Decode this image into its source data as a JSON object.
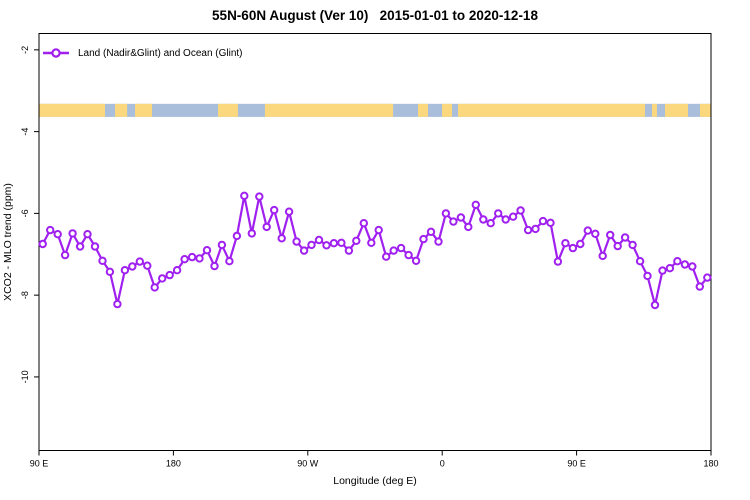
{
  "title": "55N-60N August (Ver 10)   2015-01-01 to 2020-12-18",
  "legend": {
    "label": "Land (Nadir&Glint) and Ocean (Glint)",
    "marker_color": "#A020F0"
  },
  "chart_data": {
    "type": "line",
    "title": "55N-60N August (Ver 10)   2015-01-01 to 2020-12-18",
    "xlabel": "Longitude (deg E)",
    "ylabel": "XCO2 - MLO trend (ppm)",
    "xlim": [
      90,
      540
    ],
    "ylim": [
      -11.8,
      -1.6
    ],
    "grid": false,
    "legend_position": "top-left",
    "x_ticks": [
      {
        "pos": 90,
        "label": "90 E"
      },
      {
        "pos": 180,
        "label": "180"
      },
      {
        "pos": 270,
        "label": "90 W"
      },
      {
        "pos": 360,
        "label": "0"
      },
      {
        "pos": 450,
        "label": "90 E"
      },
      {
        "pos": 540,
        "label": "180"
      }
    ],
    "y_ticks": [
      {
        "pos": -2,
        "label": "-2"
      },
      {
        "pos": -4,
        "label": "-4"
      },
      {
        "pos": -6,
        "label": "-6"
      },
      {
        "pos": -8,
        "label": "-8"
      },
      {
        "pos": -10,
        "label": "-10"
      }
    ],
    "map_strip": {
      "description": "world coastline strip at 55N-60N, ocean vs land",
      "ocean_color": "#A9BEDB",
      "land_color": "#FBD77E",
      "value_top": -3.32,
      "value_bottom": -3.64,
      "land_segments_lon": [
        [
          90,
          134.2
        ],
        [
          140.9,
          149.0
        ],
        [
          154.3,
          165.7
        ],
        [
          209.9,
          223.2
        ],
        [
          241.3,
          327.1
        ],
        [
          343.8,
          350.5
        ],
        [
          359.9,
          366.6
        ],
        [
          370.6,
          495.8
        ],
        [
          500.5,
          503.8
        ],
        [
          509.2,
          524.6
        ],
        [
          532.6,
          540
        ]
      ]
    },
    "series": [
      {
        "name": "Land (Nadir&Glint) and Ocean (Glint)",
        "color": "#A020F0",
        "marker": "open-circle",
        "x_start": 92.5,
        "x_step": 5,
        "values": [
          -6.75,
          -6.41,
          -6.51,
          -7.02,
          -6.49,
          -6.81,
          -6.51,
          -6.81,
          -7.16,
          -7.43,
          -8.22,
          -7.39,
          -7.3,
          -7.18,
          -7.28,
          -7.81,
          -7.59,
          -7.51,
          -7.39,
          -7.12,
          -7.07,
          -7.1,
          -6.9,
          -7.29,
          -6.77,
          -7.17,
          -6.55,
          -5.57,
          -6.49,
          -5.59,
          -6.33,
          -5.92,
          -6.61,
          -5.96,
          -6.69,
          -6.91,
          -6.77,
          -6.65,
          -6.78,
          -6.73,
          -6.72,
          -6.91,
          -6.67,
          -6.24,
          -6.72,
          -6.41,
          -7.06,
          -6.91,
          -6.85,
          -7.02,
          -7.16,
          -6.63,
          -6.45,
          -6.69,
          -6.0,
          -6.2,
          -6.1,
          -6.33,
          -5.79,
          -6.15,
          -6.24,
          -6.0,
          -6.15,
          -6.08,
          -5.93,
          -6.41,
          -6.38,
          -6.19,
          -6.23,
          -7.18,
          -6.73,
          -6.85,
          -6.75,
          -6.42,
          -6.5,
          -7.04,
          -6.53,
          -6.8,
          -6.59,
          -6.77,
          -7.17,
          -7.53,
          -8.24,
          -7.4,
          -7.34,
          -7.17,
          -7.25,
          -7.3,
          -7.79,
          -7.57
        ]
      }
    ]
  }
}
